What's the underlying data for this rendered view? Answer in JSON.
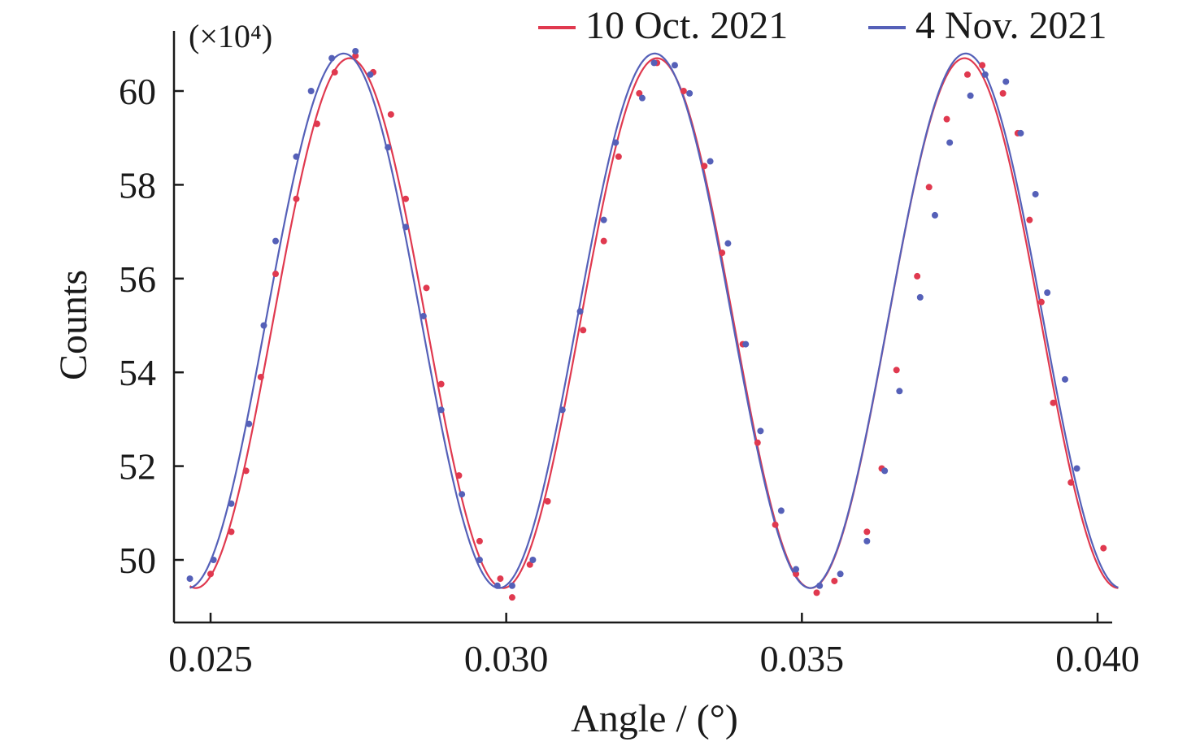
{
  "chart_data": {
    "type": "scatter",
    "title": "",
    "xlabel": "Angle / (°)",
    "ylabel": "Counts",
    "y_unit": "(×10⁴)",
    "xlim": [
      0.02465,
      0.04035
    ],
    "ylim": [
      48.7,
      61.3
    ],
    "xticks": [
      0.025,
      0.03,
      0.035,
      0.04
    ],
    "xtick_labels": [
      "0.025",
      "0.030",
      "0.035",
      "0.040"
    ],
    "yticks": [
      50,
      52,
      54,
      56,
      58,
      60
    ],
    "ytick_labels": [
      "50",
      "52",
      "54",
      "56",
      "58",
      "60"
    ],
    "grid": false,
    "legend_position": "top-right",
    "series": [
      {
        "name": "10 Oct. 2021",
        "color": "#e0394f",
        "fit": {
          "mean": 55.05,
          "amplitude": 5.65,
          "period": 0.0052,
          "peak_x": 0.02735,
          "x_range": [
            0.02465,
            0.04035
          ]
        },
        "points": [
          {
            "x": 0.025,
            "y": 49.7
          },
          {
            "x": 0.02535,
            "y": 50.6
          },
          {
            "x": 0.0256,
            "y": 51.9
          },
          {
            "x": 0.02585,
            "y": 53.9
          },
          {
            "x": 0.0261,
            "y": 56.1
          },
          {
            "x": 0.02645,
            "y": 57.7
          },
          {
            "x": 0.0268,
            "y": 59.3
          },
          {
            "x": 0.0271,
            "y": 60.4
          },
          {
            "x": 0.02745,
            "y": 60.75
          },
          {
            "x": 0.02775,
            "y": 60.4
          },
          {
            "x": 0.02805,
            "y": 59.5
          },
          {
            "x": 0.0283,
            "y": 57.7
          },
          {
            "x": 0.02865,
            "y": 55.8
          },
          {
            "x": 0.0289,
            "y": 53.75
          },
          {
            "x": 0.0292,
            "y": 51.8
          },
          {
            "x": 0.02955,
            "y": 50.4
          },
          {
            "x": 0.0299,
            "y": 49.6
          },
          {
            "x": 0.0301,
            "y": 49.2
          },
          {
            "x": 0.0304,
            "y": 49.9
          },
          {
            "x": 0.0307,
            "y": 51.25
          },
          {
            "x": 0.0313,
            "y": 54.9
          },
          {
            "x": 0.03165,
            "y": 56.8
          },
          {
            "x": 0.0319,
            "y": 58.6
          },
          {
            "x": 0.03225,
            "y": 59.95
          },
          {
            "x": 0.03255,
            "y": 60.6
          },
          {
            "x": 0.033,
            "y": 60.0
          },
          {
            "x": 0.03335,
            "y": 58.4
          },
          {
            "x": 0.03365,
            "y": 56.55
          },
          {
            "x": 0.034,
            "y": 54.6
          },
          {
            "x": 0.03425,
            "y": 52.5
          },
          {
            "x": 0.03455,
            "y": 50.75
          },
          {
            "x": 0.0349,
            "y": 49.7
          },
          {
            "x": 0.03525,
            "y": 49.3
          },
          {
            "x": 0.03555,
            "y": 49.55
          },
          {
            "x": 0.0361,
            "y": 50.6
          },
          {
            "x": 0.03635,
            "y": 51.95
          },
          {
            "x": 0.0366,
            "y": 54.05
          },
          {
            "x": 0.03695,
            "y": 56.05
          },
          {
            "x": 0.03715,
            "y": 57.95
          },
          {
            "x": 0.03745,
            "y": 59.4
          },
          {
            "x": 0.0378,
            "y": 60.35
          },
          {
            "x": 0.03805,
            "y": 60.55
          },
          {
            "x": 0.0384,
            "y": 59.95
          },
          {
            "x": 0.03865,
            "y": 59.1
          },
          {
            "x": 0.03885,
            "y": 57.25
          },
          {
            "x": 0.03905,
            "y": 55.5
          },
          {
            "x": 0.03925,
            "y": 53.35
          },
          {
            "x": 0.03955,
            "y": 51.65
          },
          {
            "x": 0.0401,
            "y": 50.25
          }
        ]
      },
      {
        "name": "4 Nov. 2021",
        "color": "#5560b8",
        "fit": {
          "mean": 55.1,
          "amplitude": 5.7,
          "period": 0.00526,
          "peak_x": 0.02725,
          "x_range": [
            0.02465,
            0.04035
          ]
        },
        "points": [
          {
            "x": 0.02465,
            "y": 49.6
          },
          {
            "x": 0.02505,
            "y": 50.0
          },
          {
            "x": 0.02535,
            "y": 51.2
          },
          {
            "x": 0.02565,
            "y": 52.9
          },
          {
            "x": 0.0259,
            "y": 55.0
          },
          {
            "x": 0.0261,
            "y": 56.8
          },
          {
            "x": 0.02645,
            "y": 58.6
          },
          {
            "x": 0.0267,
            "y": 60.0
          },
          {
            "x": 0.02705,
            "y": 60.7
          },
          {
            "x": 0.02745,
            "y": 60.85
          },
          {
            "x": 0.0277,
            "y": 60.35
          },
          {
            "x": 0.028,
            "y": 58.8
          },
          {
            "x": 0.0283,
            "y": 57.1
          },
          {
            "x": 0.0286,
            "y": 55.2
          },
          {
            "x": 0.0289,
            "y": 53.2
          },
          {
            "x": 0.02925,
            "y": 51.4
          },
          {
            "x": 0.02955,
            "y": 50.0
          },
          {
            "x": 0.02985,
            "y": 49.45
          },
          {
            "x": 0.0301,
            "y": 49.45
          },
          {
            "x": 0.03045,
            "y": 50.0
          },
          {
            "x": 0.03095,
            "y": 53.2
          },
          {
            "x": 0.03125,
            "y": 55.3
          },
          {
            "x": 0.03165,
            "y": 57.25
          },
          {
            "x": 0.03185,
            "y": 58.9
          },
          {
            "x": 0.0323,
            "y": 59.85
          },
          {
            "x": 0.0325,
            "y": 60.6
          },
          {
            "x": 0.03285,
            "y": 60.55
          },
          {
            "x": 0.0331,
            "y": 59.95
          },
          {
            "x": 0.03345,
            "y": 58.5
          },
          {
            "x": 0.03375,
            "y": 56.75
          },
          {
            "x": 0.03405,
            "y": 54.6
          },
          {
            "x": 0.0343,
            "y": 52.75
          },
          {
            "x": 0.03465,
            "y": 51.05
          },
          {
            "x": 0.0349,
            "y": 49.8
          },
          {
            "x": 0.0353,
            "y": 49.45
          },
          {
            "x": 0.03565,
            "y": 49.7
          },
          {
            "x": 0.0361,
            "y": 50.4
          },
          {
            "x": 0.0364,
            "y": 51.9
          },
          {
            "x": 0.03665,
            "y": 53.6
          },
          {
            "x": 0.037,
            "y": 55.6
          },
          {
            "x": 0.03725,
            "y": 57.35
          },
          {
            "x": 0.0375,
            "y": 58.9
          },
          {
            "x": 0.03785,
            "y": 59.9
          },
          {
            "x": 0.0381,
            "y": 60.35
          },
          {
            "x": 0.03845,
            "y": 60.2
          },
          {
            "x": 0.0387,
            "y": 59.1
          },
          {
            "x": 0.03895,
            "y": 57.8
          },
          {
            "x": 0.03915,
            "y": 55.7
          },
          {
            "x": 0.03945,
            "y": 53.85
          },
          {
            "x": 0.03965,
            "y": 51.95
          }
        ]
      }
    ]
  }
}
